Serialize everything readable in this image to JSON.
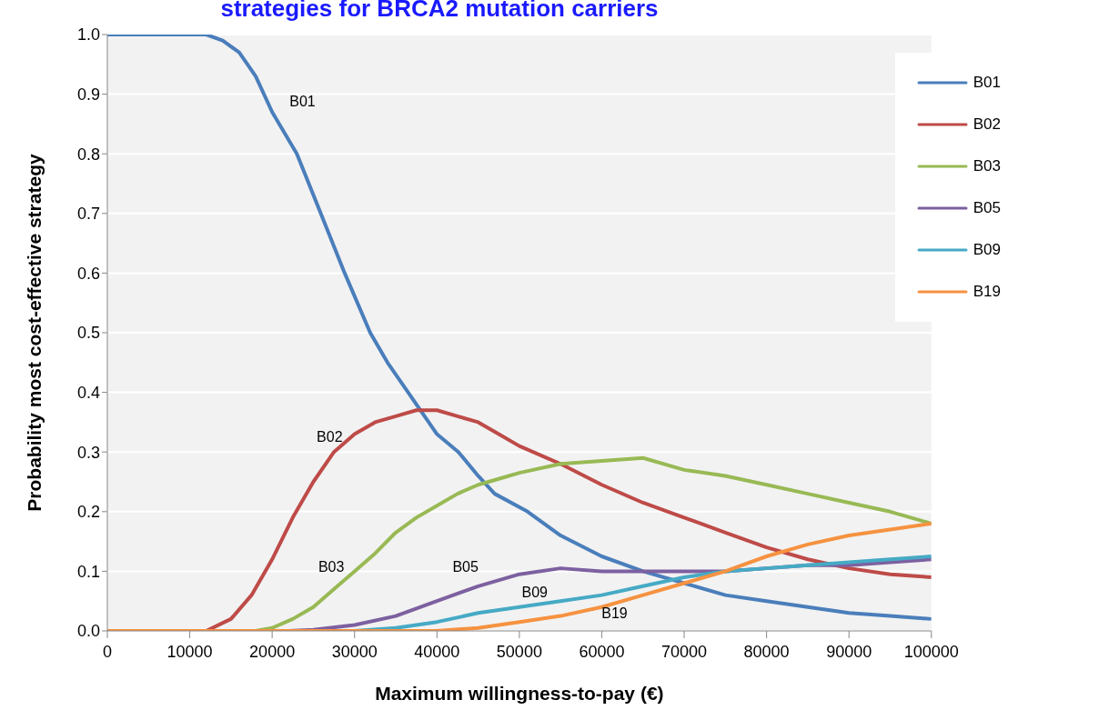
{
  "chart_data": {
    "type": "line",
    "title": "strategies for BRCA2 mutation carriers",
    "xlabel": "Maximum willingness-to-pay (€)",
    "ylabel": "Probability most cost-effective strategy",
    "xlim": [
      0,
      100000
    ],
    "xticks": [
      0,
      10000,
      20000,
      30000,
      40000,
      50000,
      60000,
      70000,
      80000,
      90000,
      100000
    ],
    "ylim": [
      0,
      1
    ],
    "yticks": [
      {
        "value": 0,
        "label": "0.0"
      },
      {
        "value": 0.1,
        "label": "0.1"
      },
      {
        "value": 0.2,
        "label": "0.2"
      },
      {
        "value": 0.3,
        "label": "0.3"
      },
      {
        "value": 0.4,
        "label": "0.4"
      },
      {
        "value": 0.5,
        "label": "0.5"
      },
      {
        "value": 0.6,
        "label": "0.6"
      },
      {
        "value": 0.7,
        "label": "0.7"
      },
      {
        "value": 0.8,
        "label": "0.8"
      },
      {
        "value": 0.9,
        "label": "0.9"
      },
      {
        "value": 1,
        "label": "1.0"
      }
    ],
    "grid": "y",
    "legend": "top right",
    "marker": "none",
    "line_style": "solid",
    "series": [
      {
        "name": "B01",
        "color": "#4a7ebb",
        "x": [
          0,
          10000,
          12000,
          14000,
          16000,
          18000,
          20000,
          23000,
          25900,
          28800,
          31900,
          34000,
          36500,
          38500,
          40000,
          42600,
          45000,
          47000,
          51000,
          55000,
          60000,
          65000,
          70000,
          75000,
          80000,
          85000,
          90000,
          95000,
          100000
        ],
        "values": [
          1,
          1,
          1,
          0.99,
          0.97,
          0.93,
          0.87,
          0.8,
          0.7,
          0.6,
          0.5,
          0.45,
          0.4,
          0.36,
          0.33,
          0.3,
          0.26,
          0.23,
          0.2,
          0.16,
          0.125,
          0.1,
          0.08,
          0.06,
          0.05,
          0.04,
          0.03,
          0.025,
          0.02
        ]
      },
      {
        "name": "B02",
        "color": "#be4b48",
        "x": [
          0,
          12000,
          15000,
          17500,
          20000,
          22500,
          25000,
          27500,
          30000,
          32500,
          35000,
          37500,
          40000,
          42500,
          45000,
          47500,
          50000,
          55000,
          60000,
          65000,
          70000,
          75000,
          80000,
          85000,
          90000,
          95000,
          100000
        ],
        "values": [
          0,
          0,
          0.02,
          0.06,
          0.12,
          0.19,
          0.25,
          0.3,
          0.33,
          0.35,
          0.36,
          0.37,
          0.37,
          0.36,
          0.35,
          0.33,
          0.31,
          0.28,
          0.245,
          0.215,
          0.19,
          0.165,
          0.14,
          0.12,
          0.105,
          0.095,
          0.09
        ]
      },
      {
        "name": "B03",
        "color": "#98b954",
        "x": [
          0,
          18000,
          20000,
          22500,
          25000,
          27500,
          30000,
          32500,
          35000,
          37500,
          40000,
          42500,
          45000,
          47500,
          50000,
          55000,
          60000,
          65000,
          70000,
          75000,
          80000,
          85000,
          90000,
          95000,
          100000
        ],
        "values": [
          0,
          0,
          0.005,
          0.02,
          0.04,
          0.07,
          0.1,
          0.13,
          0.165,
          0.19,
          0.21,
          0.23,
          0.245,
          0.255,
          0.265,
          0.28,
          0.285,
          0.29,
          0.27,
          0.26,
          0.245,
          0.23,
          0.215,
          0.2,
          0.18
        ]
      },
      {
        "name": "B05",
        "color": "#7d60a0",
        "x": [
          0,
          22000,
          25000,
          30000,
          35000,
          40000,
          45000,
          50000,
          55000,
          60000,
          65000,
          70000,
          75000,
          80000,
          85000,
          90000,
          95000,
          100000
        ],
        "values": [
          0,
          0,
          0.002,
          0.01,
          0.025,
          0.05,
          0.075,
          0.095,
          0.105,
          0.1,
          0.1,
          0.1,
          0.1,
          0.105,
          0.11,
          0.11,
          0.115,
          0.12
        ]
      },
      {
        "name": "B09",
        "color": "#46aac5",
        "x": [
          0,
          30000,
          35000,
          40000,
          45000,
          50000,
          55000,
          60000,
          65000,
          70000,
          75000,
          80000,
          85000,
          90000,
          95000,
          100000
        ],
        "values": [
          0,
          0,
          0.005,
          0.015,
          0.03,
          0.04,
          0.05,
          0.06,
          0.075,
          0.09,
          0.1,
          0.105,
          0.11,
          0.115,
          0.12,
          0.125
        ]
      },
      {
        "name": "B19",
        "color": "#f69240",
        "x": [
          0,
          40000,
          45000,
          50000,
          55000,
          60000,
          65000,
          70000,
          75000,
          80000,
          85000,
          90000,
          95000,
          100000
        ],
        "values": [
          0,
          0,
          0.005,
          0.015,
          0.025,
          0.04,
          0.06,
          0.08,
          0.1,
          0.125,
          0.145,
          0.16,
          0.17,
          0.18
        ]
      }
    ],
    "annotations": [
      "B01",
      "B02",
      "B03",
      "B05",
      "B09",
      "B19"
    ]
  }
}
